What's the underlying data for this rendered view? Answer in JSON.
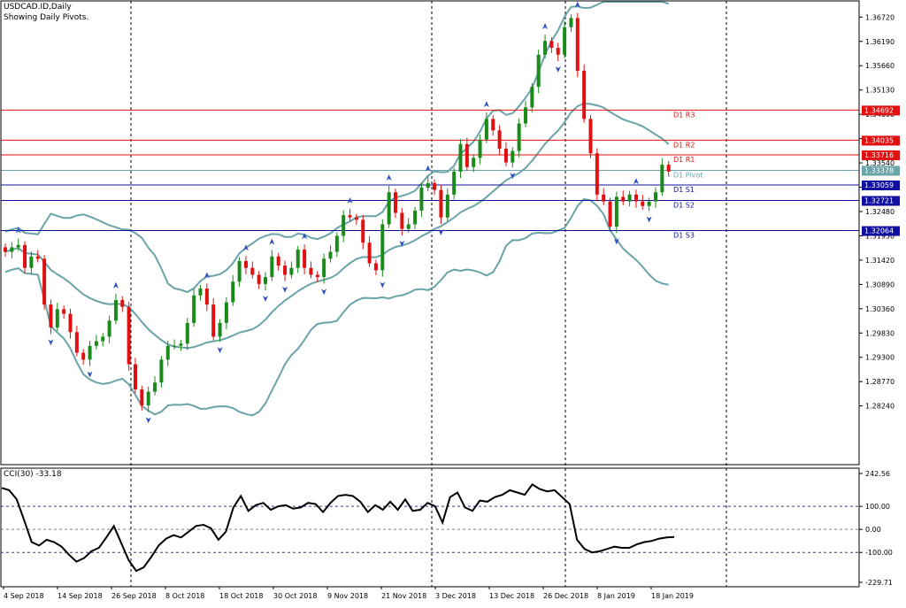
{
  "header": {
    "symbol": "USDCAD.ID,Daily",
    "note": "Showing Daily Pivots."
  },
  "indicator": {
    "label": "CCI(30) -33.18"
  },
  "colors": {
    "bull": "#1a8a1a",
    "bear": "#e01010",
    "band": "#6aa3a8",
    "resistance": "#e01010",
    "support": "#1010a0",
    "pivot": "#6aa3a8",
    "grid": "#000000",
    "signal_arrow": "#2f4fbf"
  },
  "chart_data": [
    {
      "type": "candlestick",
      "title": "USDCAD.ID,Daily",
      "subtitle": "Showing Daily Pivots.",
      "ylim": [
        1.275,
        1.369
      ],
      "y_ticks": [
        "1.36720",
        "1.36190",
        "1.35660",
        "1.35130",
        "1.34600",
        "1.34070",
        "1.33540",
        "1.33010",
        "1.32480",
        "1.31950",
        "1.31420",
        "1.30890",
        "1.30360",
        "1.29830",
        "1.29300",
        "1.28770",
        "1.28240"
      ],
      "x_labels": [
        "4 Sep 2018",
        "14 Sep 2018",
        "26 Sep 2018",
        "8 Oct 2018",
        "18 Oct 2018",
        "30 Oct 2018",
        "9 Nov 2018",
        "21 Nov 2018",
        "3 Dec 2018",
        "13 Dec 2018",
        "26 Dec 2018",
        "8 Jan 2019",
        "18 Jan 2019"
      ],
      "pivot_levels": [
        {
          "name": "D1 R3",
          "value": "1.34692",
          "kind": "resistance"
        },
        {
          "name": "D1 R2",
          "value": "1.34035",
          "kind": "resistance"
        },
        {
          "name": "D1 R1",
          "value": "1.33716",
          "kind": "resistance"
        },
        {
          "name": "D1 Pivot",
          "value": "1.33378",
          "kind": "pivot"
        },
        {
          "name": "D1 S1",
          "value": "1.33059",
          "kind": "support"
        },
        {
          "name": "D1 S2",
          "value": "1.32721",
          "kind": "support"
        },
        {
          "name": "D1 S3",
          "value": "1.32064",
          "kind": "support"
        }
      ],
      "closes": [
        1.316,
        1.317,
        1.3175,
        1.3125,
        1.315,
        1.3145,
        1.3045,
        1.2995,
        1.3035,
        1.3025,
        1.2985,
        1.294,
        1.2925,
        1.2955,
        1.2965,
        1.2975,
        1.301,
        1.3055,
        1.304,
        1.2915,
        1.286,
        1.2825,
        1.2855,
        1.2875,
        1.2925,
        1.2955,
        1.2955,
        1.296,
        1.3005,
        1.3065,
        1.308,
        1.3045,
        1.2975,
        1.3005,
        1.305,
        1.3095,
        1.314,
        1.3125,
        1.311,
        1.309,
        1.3105,
        1.315,
        1.313,
        1.311,
        1.3125,
        1.3165,
        1.3125,
        1.311,
        1.3105,
        1.3145,
        1.316,
        1.3195,
        1.324,
        1.3235,
        1.323,
        1.318,
        1.3135,
        1.312,
        1.322,
        1.329,
        1.3245,
        1.321,
        1.322,
        1.325,
        1.33,
        1.331,
        1.3295,
        1.3235,
        1.3285,
        1.3335,
        1.3395,
        1.3345,
        1.3365,
        1.3405,
        1.345,
        1.3425,
        1.3385,
        1.3355,
        1.338,
        1.344,
        1.3475,
        1.352,
        1.359,
        1.362,
        1.3605,
        1.359,
        1.365,
        1.367,
        1.3555,
        1.345,
        1.3375,
        1.3285,
        1.327,
        1.3215,
        1.328,
        1.327,
        1.3285,
        1.327,
        1.326,
        1.327,
        1.329,
        1.335,
        1.3335
      ],
      "cci": {
        "label": "CCI(30) -33.18",
        "last": -33.18,
        "ylim": [
          -229.71,
          242.56
        ],
        "levels": [
          100,
          0,
          -100
        ],
        "y_ticks": [
          "242.56",
          "100.00",
          "0.00",
          "-100.00",
          "-229.71"
        ],
        "values": [
          180,
          170,
          130,
          40,
          -55,
          -70,
          -45,
          -55,
          -75,
          -110,
          -140,
          -125,
          -95,
          -80,
          -35,
          15,
          -60,
          -135,
          -180,
          -165,
          -120,
          -70,
          -40,
          -25,
          -35,
          -10,
          15,
          20,
          5,
          -45,
          -10,
          95,
          145,
          80,
          105,
          115,
          85,
          100,
          105,
          90,
          95,
          115,
          110,
          75,
          115,
          145,
          150,
          145,
          120,
          75,
          105,
          85,
          120,
          85,
          130,
          80,
          85,
          115,
          100,
          30,
          140,
          160,
          95,
          80,
          125,
          120,
          140,
          150,
          170,
          160,
          150,
          195,
          175,
          165,
          170,
          140,
          110,
          -45,
          -85,
          -100,
          -95,
          -85,
          -75,
          -80,
          -80,
          -65,
          -55,
          -50,
          -40,
          -35,
          -33.18
        ]
      }
    }
  ]
}
